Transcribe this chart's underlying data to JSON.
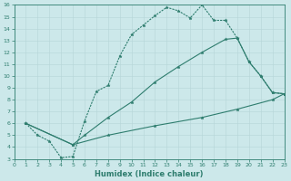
{
  "line1_x": [
    1,
    2,
    3,
    4,
    5,
    6,
    7,
    8,
    9,
    10,
    11,
    12,
    13,
    14,
    15,
    16,
    17,
    18,
    19,
    20,
    21,
    22,
    23
  ],
  "line1_y": [
    6.0,
    5.0,
    4.5,
    3.1,
    3.2,
    6.2,
    8.7,
    9.2,
    11.7,
    13.5,
    14.3,
    15.1,
    15.8,
    15.5,
    14.9,
    16.0,
    14.7,
    14.7,
    13.2,
    11.2,
    10.0,
    8.6,
    8.5
  ],
  "line2_x": [
    1,
    5,
    6,
    8,
    10,
    12,
    14,
    16,
    18,
    19,
    20,
    21,
    22,
    23
  ],
  "line2_y": [
    6.0,
    4.2,
    5.0,
    6.5,
    7.8,
    9.5,
    10.8,
    12.0,
    13.1,
    13.2,
    11.2,
    10.0,
    8.6,
    8.5
  ],
  "line3_x": [
    1,
    5,
    8,
    12,
    16,
    19,
    22,
    23
  ],
  "line3_y": [
    6.0,
    4.2,
    5.0,
    5.8,
    6.5,
    7.2,
    8.0,
    8.5
  ],
  "color": "#2e7d6e",
  "bg_color": "#cce8ea",
  "grid_color": "#b5d5d8",
  "xlabel": "Humidex (Indice chaleur)",
  "ylim": [
    3,
    16
  ],
  "xlim": [
    0,
    23
  ],
  "yticks": [
    3,
    4,
    5,
    6,
    7,
    8,
    9,
    10,
    11,
    12,
    13,
    14,
    15,
    16
  ],
  "xticks": [
    0,
    1,
    2,
    3,
    4,
    5,
    6,
    7,
    8,
    9,
    10,
    11,
    12,
    13,
    14,
    15,
    16,
    17,
    18,
    19,
    20,
    21,
    22,
    23
  ],
  "xlabel_fontsize": 6,
  "tick_fontsize": 4.5,
  "linewidth": 0.8,
  "markersize": 2.5
}
